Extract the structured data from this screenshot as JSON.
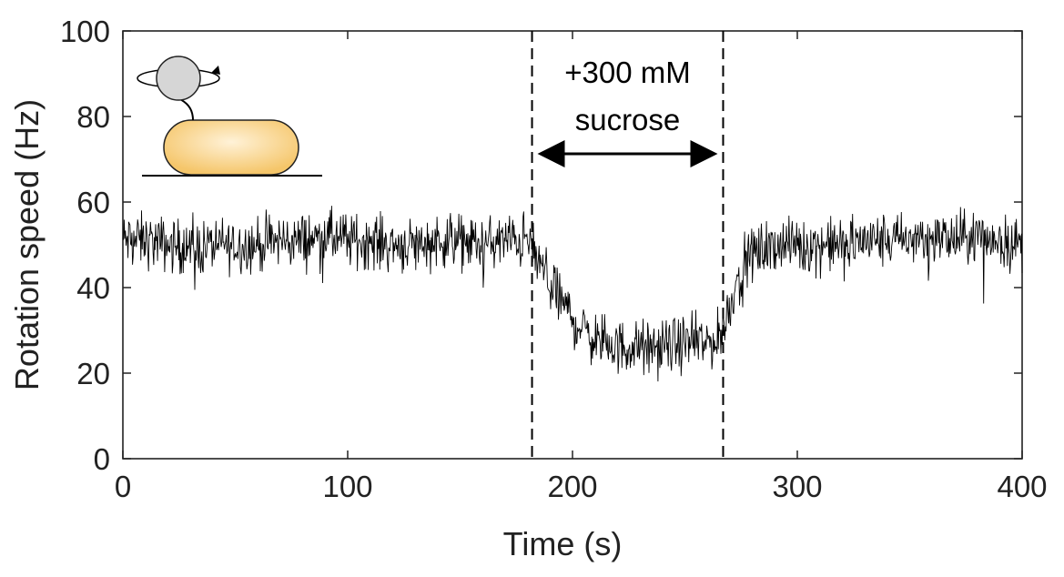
{
  "chart_data": {
    "type": "line",
    "xlabel": "Time (s)",
    "ylabel": "Rotation speed (Hz)",
    "xlim": [
      0,
      400
    ],
    "ylim": [
      0,
      100
    ],
    "xticks": [
      0,
      100,
      200,
      300,
      400
    ],
    "yticks": [
      0,
      20,
      40,
      60,
      80,
      100
    ],
    "grid": false,
    "line_color": "#000000",
    "series": [
      {
        "x": [
          0,
          10,
          20,
          30,
          40,
          50,
          60,
          70,
          80,
          90,
          100,
          110,
          120,
          130,
          140,
          150,
          160,
          170,
          180,
          185,
          190,
          195,
          200,
          205,
          210,
          215,
          220,
          230,
          240,
          250,
          255,
          260,
          265,
          268,
          272,
          276,
          280,
          290,
          300,
          310,
          320,
          330,
          340,
          350,
          360,
          370,
          380,
          390,
          400
        ],
        "values": [
          51,
          51,
          50,
          49,
          50,
          50,
          50,
          51,
          51,
          52,
          51,
          51,
          50,
          50,
          51,
          51,
          50,
          51,
          51,
          46,
          41,
          37,
          33,
          30,
          28,
          27,
          26,
          26,
          26,
          27,
          27,
          27,
          28,
          32,
          40,
          45,
          48,
          50,
          50,
          50,
          50,
          51,
          51,
          51,
          52,
          51,
          52,
          51,
          50
        ],
        "noise_amplitude_hz": 4.5
      }
    ],
    "annotations": {
      "treatment_label_line1": "+300 mM",
      "treatment_label_line2": "sucrose",
      "treatment_start_s": 182,
      "treatment_end_s": 267
    },
    "inset": {
      "description_icon": "bead-on-bacterium-icon",
      "cell_fill_light": "#fff2d8",
      "cell_fill_dark": "#f5c66a",
      "bead_fill": "#d6d6d6"
    }
  }
}
